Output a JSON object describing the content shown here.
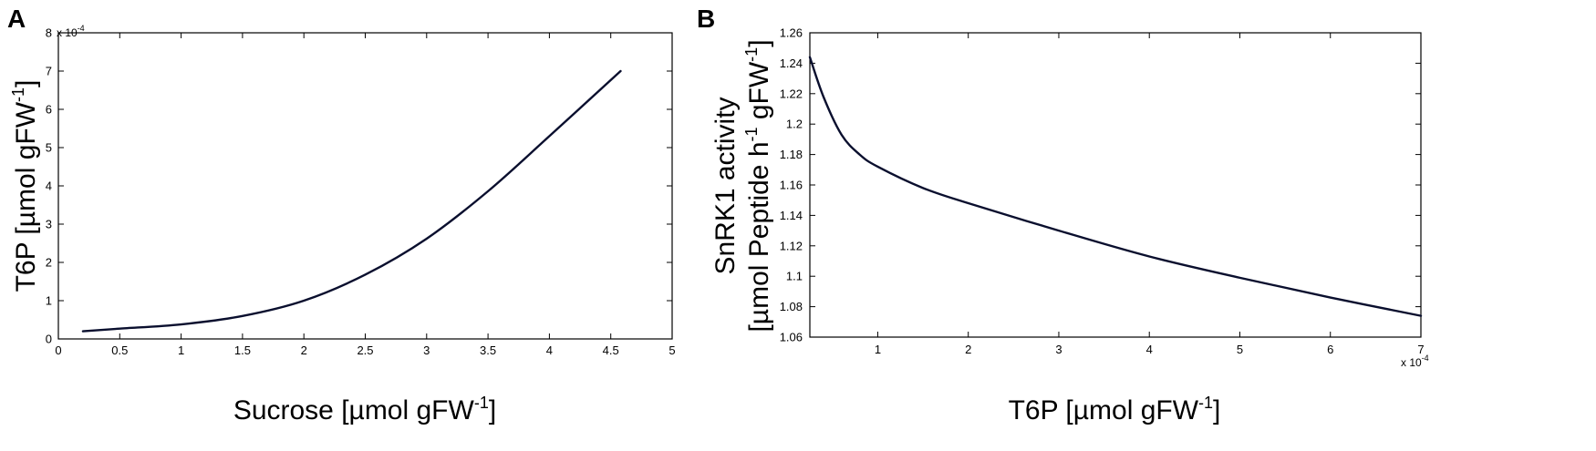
{
  "chart_data": [
    {
      "panel_label": "A",
      "type": "line",
      "xlabel": "Sucrose [µmol gFW",
      "xlabel_sup": "-1",
      "xlabel_end": "]",
      "ylabel": "T6P [µmol gFW",
      "ylabel_sup": "-1",
      "ylabel_end": "]",
      "xlim": [
        0,
        5
      ],
      "ylim": [
        0,
        8
      ],
      "y_multiplier": "x 10",
      "y_multiplier_exp": "-4",
      "x_ticks": [
        "0",
        "0.5",
        "1",
        "1.5",
        "2",
        "2.5",
        "3",
        "3.5",
        "4",
        "4.5",
        "5"
      ],
      "y_ticks": [
        "0",
        "1",
        "2",
        "3",
        "4",
        "5",
        "6",
        "7",
        "8"
      ],
      "grid": false,
      "series": [
        {
          "x": [
            0.2,
            0.5,
            1.0,
            1.5,
            2.0,
            2.5,
            3.0,
            3.5,
            4.0,
            4.58
          ],
          "y": [
            0.2,
            0.27,
            0.38,
            0.6,
            1.0,
            1.68,
            2.62,
            3.86,
            5.3,
            7.0
          ]
        }
      ]
    },
    {
      "panel_label": "B",
      "type": "line",
      "xlabel": "T6P [µmol gFW",
      "xlabel_sup": "-1",
      "xlabel_end": "]",
      "ylabel": "SnRK1 activity",
      "ylabel2": "[µmol Peptide h",
      "ylabel2_sup1": "-1",
      "ylabel2_mid": " gFW",
      "ylabel2_sup2": "-1",
      "ylabel2_end": "]",
      "xlim": [
        0.25,
        7
      ],
      "ylim": [
        1.06,
        1.26
      ],
      "x_multiplier": "x 10",
      "x_multiplier_exp": "-4",
      "x_ticks": [
        "1",
        "2",
        "3",
        "4",
        "5",
        "6",
        "7"
      ],
      "y_ticks": [
        "1.06",
        "1.08",
        "1.1",
        "1.12",
        "1.14",
        "1.16",
        "1.18",
        "1.2",
        "1.22",
        "1.24",
        "1.26"
      ],
      "grid": false,
      "series": [
        {
          "x": [
            0.25,
            0.4,
            0.6,
            0.8,
            1.0,
            1.5,
            2.0,
            3.0,
            4.0,
            5.0,
            6.0,
            7.0
          ],
          "y": [
            1.244,
            1.218,
            1.193,
            1.18,
            1.172,
            1.158,
            1.148,
            1.13,
            1.113,
            1.099,
            1.086,
            1.074
          ]
        }
      ]
    }
  ]
}
